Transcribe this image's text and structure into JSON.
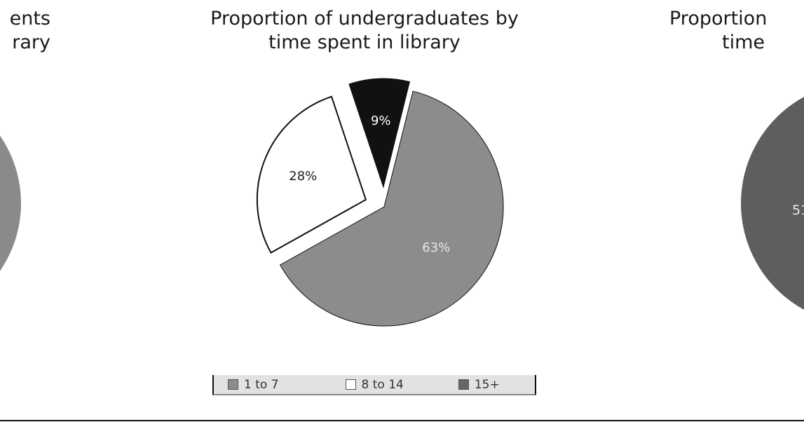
{
  "left_chart_fragment": {
    "title_line1": "ents",
    "title_line2": "rary",
    "color": "#8a8a8a"
  },
  "right_chart_fragment": {
    "title_line1": "Proportion",
    "title_line2": "time",
    "visible_label": "51",
    "color": "#5e5e5e"
  },
  "chart_data": {
    "type": "pie",
    "title_line1": "Proportion of undergraduates by",
    "title_line2": "time spent in library",
    "categories": [
      "1 to 7",
      "8 to 14",
      "15+"
    ],
    "values": [
      63,
      28,
      9
    ],
    "labels": [
      "63%",
      "28%",
      "9%"
    ],
    "colors": [
      "#8c8c8c",
      "#ffffff",
      "#111111"
    ],
    "label_colors": [
      "#e8e8e8",
      "#222222",
      "#ffffff"
    ],
    "exploded": [
      false,
      true,
      true
    ],
    "legend_position": "bottom"
  }
}
